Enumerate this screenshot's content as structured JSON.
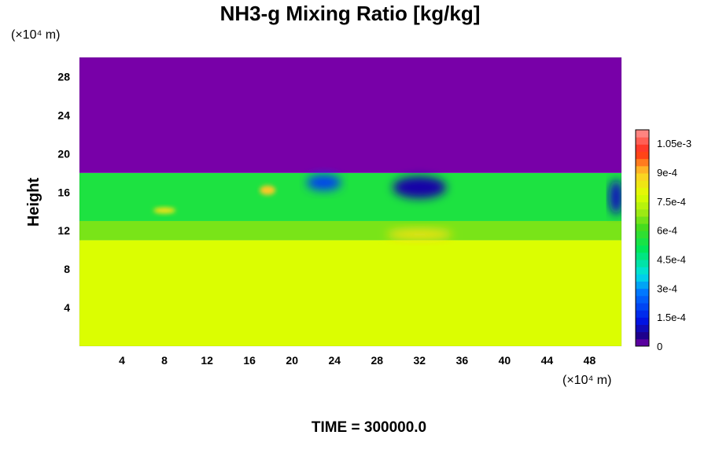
{
  "chart_data": {
    "type": "heatmap",
    "title": "NH3-g Mixing Ratio [kg/kg]",
    "ylabel": "Height",
    "x_unit": "(×10⁴ m)",
    "y_unit": "(×10⁴ m)",
    "xlim": [
      0,
      51
    ],
    "ylim": [
      0,
      30
    ],
    "x_ticks": [
      4,
      8,
      12,
      16,
      20,
      24,
      28,
      32,
      36,
      40,
      44,
      48
    ],
    "y_ticks": [
      4,
      8,
      12,
      16,
      20,
      24,
      28
    ],
    "colorbar": {
      "min": 0,
      "max": 0.00112,
      "tick_values": [
        0,
        0.00015,
        0.0003,
        0.00045,
        0.0006,
        0.00075,
        0.0009,
        0.00105
      ],
      "tick_labels": [
        "0",
        "1.5e-4",
        "3e-4",
        "4.5e-4",
        "6e-4",
        "7.5e-4",
        "9e-4",
        "1.05e-3"
      ]
    },
    "regions": [
      {
        "y_from": 0,
        "y_to": 11,
        "value": 0.00078
      },
      {
        "y_from": 11,
        "y_to": 13,
        "value": 0.00066
      },
      {
        "y_from": 13,
        "y_to": 18,
        "value": 0.00055
      },
      {
        "y_from": 18,
        "y_to": 30,
        "value": 0
      }
    ],
    "features": [
      {
        "x": 32,
        "y": 16.5,
        "value": 8e-05
      },
      {
        "x": 23,
        "y": 17,
        "value": 0.0002
      },
      {
        "x": 17.7,
        "y": 16.2,
        "value": 0.0009
      },
      {
        "x": 8,
        "y": 14.1,
        "value": 0.00085
      },
      {
        "x": 32,
        "y": 11.6,
        "value": 0.00085
      },
      {
        "x": 50.5,
        "y": 15.5,
        "value": 0.0001
      }
    ]
  },
  "footer": {
    "time_label": "TIME = 300000.0"
  }
}
